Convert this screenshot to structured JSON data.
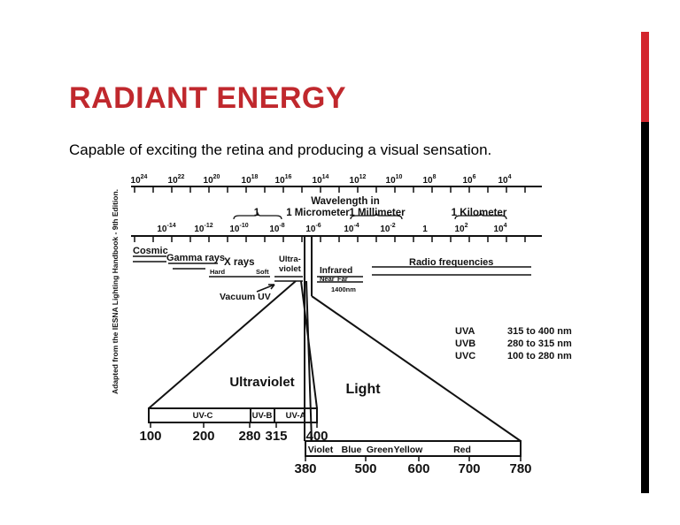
{
  "header": {
    "title": "RADIANT ENERGY",
    "subtitle": "Capable of exciting the retina and producing a visual sensation."
  },
  "diagram": {
    "credit": "Adapted from the IESNA Lighting Handbook - 9th Edition.",
    "frequency_ticks": [
      {
        "base": "10",
        "exp": "24"
      },
      {
        "base": "10",
        "exp": "22"
      },
      {
        "base": "10",
        "exp": "20"
      },
      {
        "base": "10",
        "exp": "18"
      },
      {
        "base": "10",
        "exp": "16"
      },
      {
        "base": "10",
        "exp": "14"
      },
      {
        "base": "10",
        "exp": "12"
      },
      {
        "base": "10",
        "exp": "10"
      },
      {
        "base": "10",
        "exp": "8"
      },
      {
        "base": "10",
        "exp": "6"
      },
      {
        "base": "10",
        "exp": "4"
      }
    ],
    "wavelength_title": "Wavelength in",
    "wavelength_units": [
      "1",
      "1 Micrometer",
      "1 Millimeter",
      "1 Kilometer"
    ],
    "wavelength_ticks": [
      {
        "base": "10",
        "exp": "-14"
      },
      {
        "base": "10",
        "exp": "-12"
      },
      {
        "base": "10",
        "exp": "-10"
      },
      {
        "base": "10",
        "exp": "-8"
      },
      {
        "base": "10",
        "exp": "-6"
      },
      {
        "base": "10",
        "exp": "-4"
      },
      {
        "base": "10",
        "exp": "-2"
      },
      {
        "base": "1",
        "exp": ""
      },
      {
        "base": "10",
        "exp": "2"
      },
      {
        "base": "10",
        "exp": "4"
      }
    ],
    "bands": [
      "Cosmic",
      "Gamma rays",
      "X rays",
      "Hard",
      "Soft",
      "Ultra-",
      "violet",
      "Infrared",
      "Near",
      "Far",
      "1400nm",
      "Radio frequencies",
      "Vacuum UV"
    ],
    "region_labels": {
      "ultraviolet": "Ultraviolet",
      "light": "Light"
    },
    "uv_bands": [
      "UV-C",
      "UV-B",
      "UV-A"
    ],
    "uv_scale": [
      "100",
      "200",
      "280",
      "315",
      "400"
    ],
    "colors": [
      "Violet",
      "Blue",
      "Green",
      "Yellow",
      "Red"
    ],
    "visible_scale": [
      "380",
      "500",
      "600",
      "700",
      "780"
    ],
    "uv_table": {
      "rows": [
        [
          "UVA",
          "315 to 400 nm"
        ],
        [
          "UVB",
          "280 to 315 nm"
        ],
        [
          "UVC",
          "100 to 280 nm"
        ]
      ]
    }
  }
}
